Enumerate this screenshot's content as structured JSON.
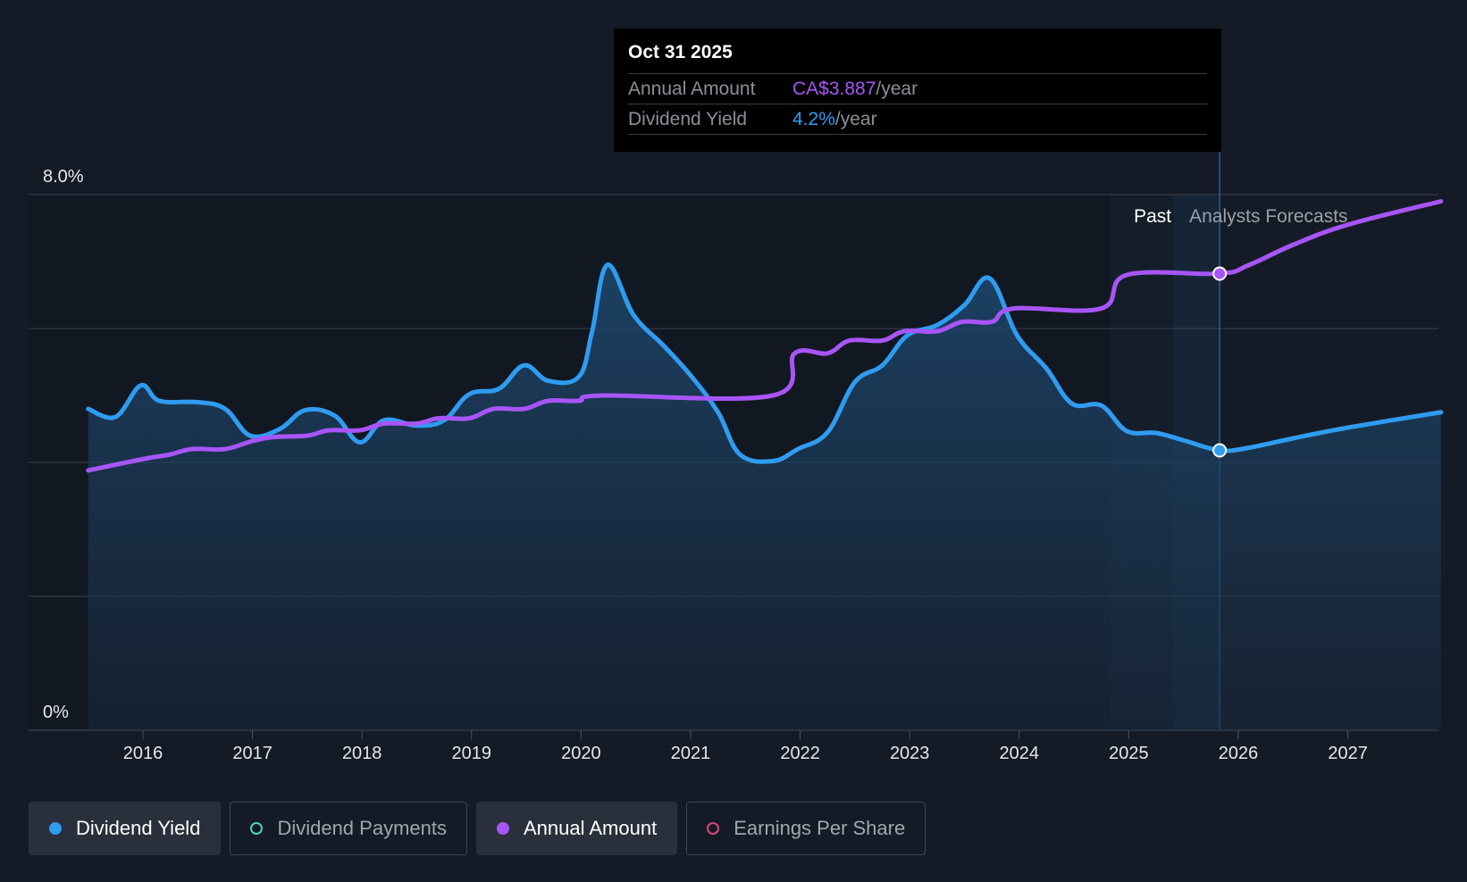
{
  "tooltip": {
    "date": "Oct 31 2025",
    "annual_label": "Annual Amount",
    "annual_value": "CA$3.887",
    "yield_label": "Dividend Yield",
    "yield_value": "4.2%",
    "unit": "/year"
  },
  "region_labels": {
    "past": "Past",
    "forecast": "Analysts Forecasts"
  },
  "legend": [
    {
      "label": "Dividend Yield",
      "color": "#2f9cf0",
      "active": true,
      "filled": true
    },
    {
      "label": "Dividend Payments",
      "color": "#4fd1c5",
      "active": false,
      "filled": false
    },
    {
      "label": "Annual Amount",
      "color": "#a855f7",
      "active": true,
      "filled": true
    },
    {
      "label": "Earnings Per Share",
      "color": "#e0457b",
      "active": false,
      "filled": false
    }
  ],
  "colors": {
    "background": "#151b26",
    "yield": "#2f9cf0",
    "annual": "#a855f7",
    "grid": "#3a4150"
  },
  "chart_data": {
    "type": "line",
    "x_ticks": [
      "2016",
      "2017",
      "2018",
      "2019",
      "2020",
      "2021",
      "2022",
      "2023",
      "2024",
      "2025",
      "2026",
      "2027"
    ],
    "y_ticks": [
      "0%",
      "8.0%"
    ],
    "ylim": [
      0,
      8
    ],
    "xlim": [
      2015.0,
      2027.85
    ],
    "highlight_date": 2025.83,
    "past_region_start": 2024.83,
    "series": [
      {
        "name": "Dividend Yield",
        "key": "yield",
        "area": true,
        "points": [
          [
            2015.5,
            4.8
          ],
          [
            2015.75,
            4.68
          ],
          [
            2015.98,
            5.15
          ],
          [
            2016.15,
            4.92
          ],
          [
            2016.5,
            4.9
          ],
          [
            2016.75,
            4.8
          ],
          [
            2016.98,
            4.4
          ],
          [
            2017.25,
            4.5
          ],
          [
            2017.48,
            4.78
          ],
          [
            2017.75,
            4.7
          ],
          [
            2017.98,
            4.3
          ],
          [
            2018.2,
            4.63
          ],
          [
            2018.5,
            4.55
          ],
          [
            2018.75,
            4.63
          ],
          [
            2018.98,
            5.02
          ],
          [
            2019.25,
            5.1
          ],
          [
            2019.48,
            5.45
          ],
          [
            2019.7,
            5.22
          ],
          [
            2019.98,
            5.28
          ],
          [
            2020.1,
            5.95
          ],
          [
            2020.24,
            6.95
          ],
          [
            2020.48,
            6.2
          ],
          [
            2020.75,
            5.75
          ],
          [
            2021.0,
            5.3
          ],
          [
            2021.25,
            4.75
          ],
          [
            2021.45,
            4.12
          ],
          [
            2021.75,
            4.02
          ],
          [
            2021.98,
            4.2
          ],
          [
            2022.25,
            4.45
          ],
          [
            2022.5,
            5.2
          ],
          [
            2022.75,
            5.45
          ],
          [
            2022.98,
            5.9
          ],
          [
            2023.25,
            6.05
          ],
          [
            2023.5,
            6.35
          ],
          [
            2023.73,
            6.75
          ],
          [
            2023.98,
            5.9
          ],
          [
            2024.25,
            5.4
          ],
          [
            2024.48,
            4.88
          ],
          [
            2024.75,
            4.85
          ],
          [
            2024.98,
            4.47
          ],
          [
            2025.25,
            4.44
          ],
          [
            2025.5,
            4.33
          ],
          [
            2025.83,
            4.18
          ],
          [
            2026.1,
            4.22
          ],
          [
            2026.5,
            4.36
          ],
          [
            2027.0,
            4.52
          ],
          [
            2027.85,
            4.75
          ]
        ]
      },
      {
        "name": "Annual Amount",
        "key": "annual",
        "area": false,
        "points": [
          [
            2015.5,
            3.88
          ],
          [
            2016.0,
            4.05
          ],
          [
            2016.25,
            4.12
          ],
          [
            2016.45,
            4.2
          ],
          [
            2016.75,
            4.2
          ],
          [
            2017.0,
            4.32
          ],
          [
            2017.2,
            4.38
          ],
          [
            2017.5,
            4.4
          ],
          [
            2017.7,
            4.48
          ],
          [
            2017.98,
            4.48
          ],
          [
            2018.2,
            4.58
          ],
          [
            2018.5,
            4.58
          ],
          [
            2018.7,
            4.66
          ],
          [
            2018.98,
            4.66
          ],
          [
            2019.2,
            4.8
          ],
          [
            2019.48,
            4.8
          ],
          [
            2019.7,
            4.92
          ],
          [
            2019.98,
            4.92
          ],
          [
            2020.2,
            5.0
          ],
          [
            2021.75,
            5.0
          ],
          [
            2021.95,
            5.63
          ],
          [
            2022.25,
            5.63
          ],
          [
            2022.45,
            5.82
          ],
          [
            2022.75,
            5.82
          ],
          [
            2022.95,
            5.96
          ],
          [
            2023.25,
            5.96
          ],
          [
            2023.48,
            6.1
          ],
          [
            2023.75,
            6.1
          ],
          [
            2023.95,
            6.3
          ],
          [
            2024.75,
            6.3
          ],
          [
            2024.98,
            6.8
          ],
          [
            2025.83,
            6.82
          ],
          [
            2026.1,
            6.95
          ],
          [
            2026.5,
            7.25
          ],
          [
            2027.0,
            7.55
          ],
          [
            2027.85,
            7.9
          ]
        ]
      }
    ]
  }
}
